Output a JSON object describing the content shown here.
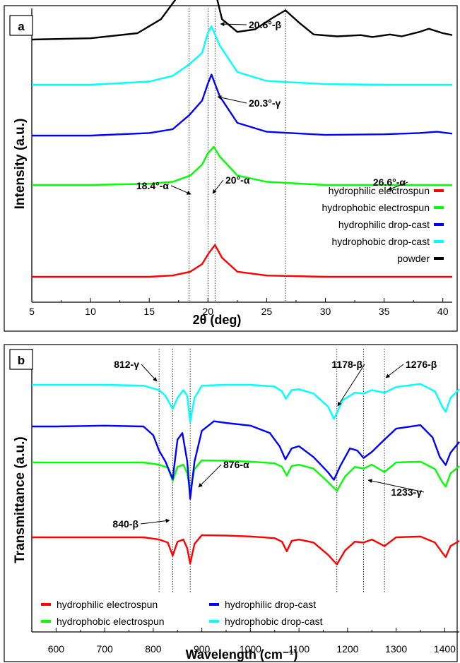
{
  "chart_data": [
    {
      "panel": "a",
      "type": "line",
      "xlabel": "2θ (deg)",
      "ylabel": "Intensity (a.u.)",
      "xlim": [
        5,
        40.8
      ],
      "xticks": [
        5,
        10,
        15,
        20,
        25,
        30,
        35,
        40
      ],
      "y_ticks_shown": false,
      "grid": false,
      "legend_position": "bottom-right",
      "reference_lines_x": [
        18.4,
        20,
        20.6,
        26.6
      ],
      "series": [
        {
          "name": "hydrophilic electrospun",
          "color": "#ff0000",
          "offset": 4,
          "x": [
            5,
            10,
            15,
            17,
            18.5,
            19.5,
            20.1,
            20.6,
            21.2,
            22.5,
            25,
            30,
            35,
            40.8
          ],
          "y": [
            0.0,
            0.0,
            0.0,
            0.02,
            0.08,
            0.2,
            0.38,
            0.5,
            0.3,
            0.08,
            0.02,
            0.0,
            0.0,
            0.0
          ]
        },
        {
          "name": "hydrophobic electrospun",
          "color": "#00ff00",
          "offset": 3,
          "x": [
            5,
            10,
            15,
            17,
            18.5,
            19.5,
            20.0,
            20.5,
            21.0,
            22.5,
            25,
            30,
            35,
            40.8
          ],
          "y": [
            0.0,
            0.0,
            0.02,
            0.05,
            0.15,
            0.32,
            0.5,
            0.6,
            0.45,
            0.15,
            0.05,
            0.0,
            0.0,
            0.0
          ]
        },
        {
          "name": "hydrophilic drop-cast",
          "color": "#0000ff",
          "offset": 2,
          "x": [
            5,
            10,
            15,
            17,
            18.4,
            19.5,
            20.0,
            20.3,
            21.0,
            22.5,
            25,
            30,
            35,
            38,
            39.5,
            40.8
          ],
          "y": [
            0.0,
            0.0,
            0.04,
            0.1,
            0.32,
            0.55,
            0.82,
            0.96,
            0.62,
            0.2,
            0.06,
            0.01,
            0.02,
            0.04,
            0.06,
            0.03
          ]
        },
        {
          "name": "hydrophobic drop-cast",
          "color": "#00ffff",
          "offset": 1,
          "x": [
            5,
            10,
            15,
            17,
            18.4,
            19.5,
            20.0,
            20.3,
            21.0,
            22.5,
            25,
            30,
            35,
            40.8
          ],
          "y": [
            0.0,
            0.0,
            0.05,
            0.14,
            0.32,
            0.5,
            0.82,
            0.92,
            0.62,
            0.2,
            0.06,
            0.01,
            0.0,
            0.0
          ]
        },
        {
          "name": "powder",
          "color": "#000000",
          "offset": 0,
          "x": [
            5,
            10,
            14,
            16,
            17.2,
            18.0,
            18.4,
            18.9,
            19.3,
            19.7,
            20.0,
            20.5,
            21.2,
            22.5,
            24,
            25.5,
            26.6,
            27.8,
            29,
            31,
            33,
            34,
            35.5,
            36.5,
            38,
            38.8,
            40,
            40.8
          ],
          "y": [
            0.0,
            0.02,
            0.1,
            0.32,
            0.62,
            1.02,
            1.22,
            0.72,
            0.68,
            1.1,
            1.38,
            0.85,
            0.32,
            0.12,
            0.16,
            0.34,
            0.46,
            0.26,
            0.08,
            0.05,
            0.07,
            0.04,
            0.08,
            0.05,
            0.12,
            0.17,
            0.1,
            0.07
          ]
        }
      ],
      "annotations": [
        {
          "text": "20.6°-β",
          "x": 20.6
        },
        {
          "text": "20.3°-γ",
          "x": 20.3
        },
        {
          "text": "18.4°-α",
          "x": 18.4
        },
        {
          "text": "20°-α",
          "x": 20
        },
        {
          "text": "26.6°-α",
          "x": 26.6
        }
      ]
    },
    {
      "panel": "b",
      "type": "line",
      "xlabel": "Wavelength (cm⁻¹)",
      "ylabel": "Transmittance (a.u.)",
      "xlim": [
        550,
        1430
      ],
      "xticks": [
        600,
        700,
        800,
        900,
        1000,
        1100,
        1200,
        1300,
        1400
      ],
      "y_ticks_shown": false,
      "grid": false,
      "legend_position": "bottom-left",
      "reference_lines_x": [
        812,
        840,
        876,
        1178,
        1233,
        1276
      ],
      "series": [
        {
          "name": "hydrophilic electrospun",
          "color": "#ff0000",
          "offset": 3,
          "x": [
            550,
            600,
            700,
            780,
            812,
            830,
            840,
            850,
            862,
            870,
            876,
            885,
            900,
            950,
            1000,
            1050,
            1065,
            1075,
            1085,
            1100,
            1130,
            1160,
            1178,
            1195,
            1215,
            1233,
            1250,
            1276,
            1300,
            1350,
            1380,
            1395,
            1402,
            1412,
            1430
          ],
          "y": [
            0.0,
            0.0,
            0.0,
            0.0,
            -0.05,
            -0.12,
            -0.42,
            -0.1,
            -0.05,
            -0.25,
            -0.6,
            -0.15,
            0.05,
            0.04,
            0.02,
            -0.02,
            -0.1,
            -0.32,
            -0.08,
            -0.05,
            -0.12,
            -0.4,
            -0.62,
            -0.3,
            -0.1,
            -0.12,
            -0.05,
            -0.2,
            0.0,
            0.02,
            -0.12,
            -0.35,
            -0.45,
            -0.2,
            -0.08
          ]
        },
        {
          "name": "hydrophobic electrospun",
          "color": "#00ff00",
          "offset": 2,
          "x": [
            550,
            600,
            700,
            780,
            812,
            830,
            840,
            850,
            862,
            870,
            876,
            885,
            900,
            950,
            1000,
            1050,
            1065,
            1075,
            1085,
            1100,
            1130,
            1160,
            1178,
            1195,
            1215,
            1233,
            1250,
            1276,
            1300,
            1350,
            1380,
            1395,
            1402,
            1412,
            1430
          ],
          "y": [
            0.0,
            0.0,
            0.0,
            0.0,
            -0.05,
            -0.12,
            -0.42,
            -0.1,
            -0.05,
            -0.25,
            -0.65,
            -0.15,
            0.05,
            0.04,
            0.02,
            -0.02,
            -0.1,
            -0.3,
            -0.08,
            -0.05,
            -0.14,
            -0.45,
            -0.65,
            -0.32,
            -0.1,
            -0.14,
            -0.05,
            -0.22,
            0.0,
            0.02,
            -0.15,
            -0.45,
            -0.55,
            -0.25,
            -0.08
          ]
        },
        {
          "name": "hydrophilic drop-cast",
          "color": "#0000ff",
          "offset": 1,
          "x": [
            550,
            600,
            700,
            780,
            800,
            812,
            825,
            840,
            850,
            860,
            870,
            876,
            885,
            900,
            925,
            950,
            1000,
            1040,
            1060,
            1072,
            1085,
            1100,
            1130,
            1160,
            1172,
            1185,
            1205,
            1220,
            1233,
            1250,
            1276,
            1300,
            1350,
            1375,
            1390,
            1402,
            1412,
            1430
          ],
          "y": [
            0.0,
            0.0,
            0.02,
            0.0,
            -0.2,
            -0.55,
            -0.8,
            -1.2,
            -0.3,
            -0.15,
            -0.8,
            -1.65,
            -0.8,
            -0.1,
            0.12,
            0.08,
            0.02,
            -0.15,
            -0.45,
            -0.75,
            -0.5,
            -0.45,
            -0.7,
            -1.05,
            -1.22,
            -0.9,
            -0.5,
            -0.55,
            -0.72,
            -0.58,
            -0.3,
            -0.05,
            0.03,
            -0.25,
            -0.7,
            -0.88,
            -0.6,
            -0.35
          ]
        },
        {
          "name": "hydrophobic drop-cast",
          "color": "#00ffff",
          "offset": 0,
          "x": [
            550,
            600,
            700,
            780,
            812,
            825,
            840,
            850,
            862,
            870,
            876,
            885,
            900,
            950,
            1000,
            1050,
            1065,
            1073,
            1085,
            1100,
            1130,
            1160,
            1172,
            1190,
            1215,
            1233,
            1250,
            1276,
            1300,
            1350,
            1380,
            1395,
            1402,
            1412,
            1430
          ],
          "y": [
            0.0,
            0.0,
            0.0,
            -0.02,
            -0.12,
            -0.25,
            -0.55,
            -0.3,
            -0.12,
            -0.25,
            -0.85,
            -0.3,
            -0.02,
            0.0,
            0.0,
            -0.04,
            -0.15,
            -0.32,
            -0.12,
            -0.1,
            -0.2,
            -0.5,
            -0.78,
            -0.35,
            -0.18,
            -0.2,
            -0.12,
            -0.18,
            -0.05,
            0.02,
            -0.15,
            -0.5,
            -0.62,
            -0.3,
            -0.1
          ]
        }
      ],
      "annotations": [
        {
          "text": "812-γ",
          "x": 812
        },
        {
          "text": "1178-β",
          "x": 1178
        },
        {
          "text": "1276-β",
          "x": 1276
        },
        {
          "text": "876-α",
          "x": 876
        },
        {
          "text": "1233-γ",
          "x": 1233
        },
        {
          "text": "840-β",
          "x": 840
        }
      ]
    }
  ]
}
